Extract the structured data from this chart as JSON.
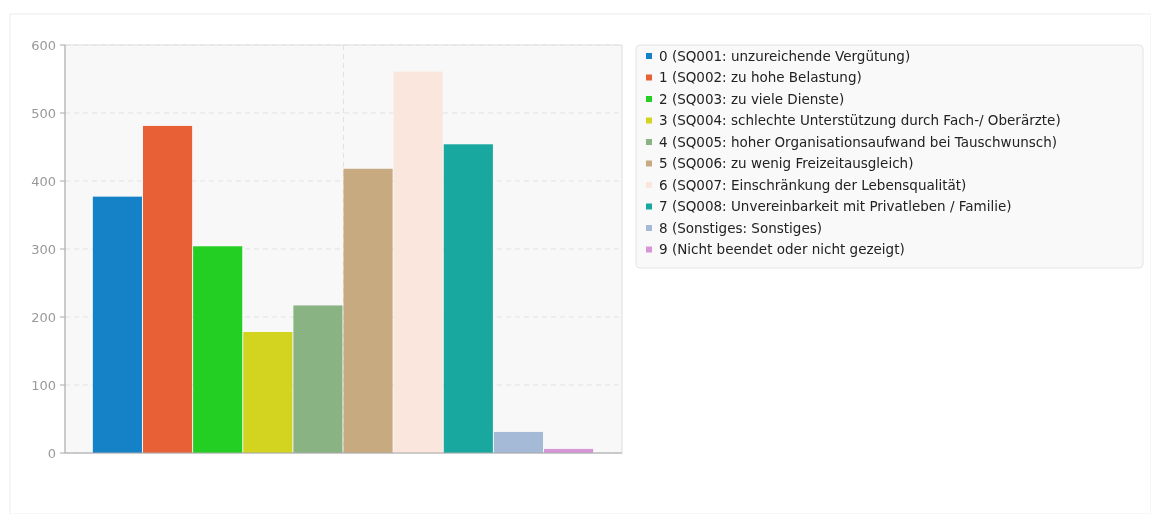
{
  "chart_data": {
    "type": "bar",
    "categories": [
      null
    ],
    "series": [
      {
        "name": "0 (SQ001: unzureichende Vergütung)",
        "color": "#1582c8",
        "values": [
          377
        ]
      },
      {
        "name": "1 (SQ002: zu hohe Belastung)",
        "color": "#e86035",
        "values": [
          481
        ]
      },
      {
        "name": "2 (SQ003: zu viele Dienste)",
        "color": "#22cf22",
        "values": [
          304
        ]
      },
      {
        "name": "3 (SQ004: schlechte Unterstützung durch Fach-/ Oberärzte)",
        "color": "#d3d41f",
        "values": [
          178
        ]
      },
      {
        "name": "4 (SQ005: hoher Organisationsaufwand bei Tauschwunsch)",
        "color": "#8ab384",
        "values": [
          217
        ]
      },
      {
        "name": "5 (SQ006: zu wenig Freizeitausgleich)",
        "color": "#c8aa81",
        "values": [
          418
        ]
      },
      {
        "name": "6 (SQ007: Einschränkung der Lebensqualität)",
        "color": "#fae6dd",
        "values": [
          561
        ]
      },
      {
        "name": "7 (SQ008: Unvereinbarkeit mit Privatleben / Familie)",
        "color": "#19a8a0",
        "values": [
          454
        ]
      },
      {
        "name": "8 (Sonstiges: Sonstiges)",
        "color": "#a4bad6",
        "values": [
          31
        ]
      },
      {
        "name": "9 (Nicht beendet oder nicht gezeigt)",
        "color": "#d796d7",
        "values": [
          6
        ]
      }
    ],
    "ylim": [
      0,
      600
    ],
    "yticks": [
      0,
      100,
      200,
      300,
      400,
      500,
      600
    ],
    "grid": true,
    "legend": "right"
  }
}
